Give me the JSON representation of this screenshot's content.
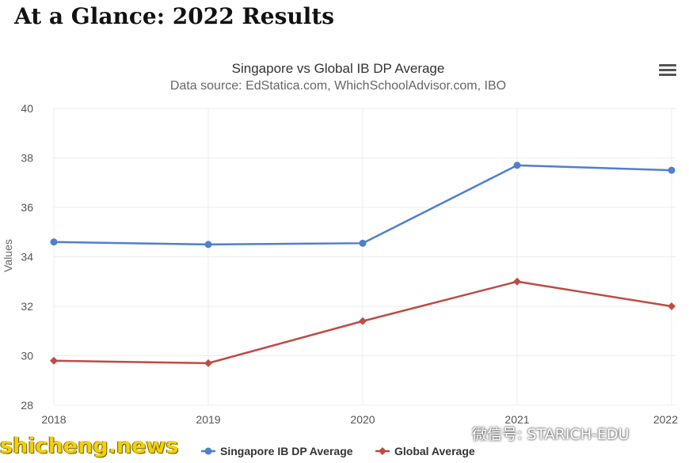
{
  "page": {
    "heading": "At a Glance: 2022 Results",
    "watermark_left": "shicheng.news",
    "watermark_right": "微信号: STARICH-EDU",
    "menu_icon": "hamburger-menu-icon"
  },
  "chart_data": {
    "type": "line",
    "title": "Singapore vs Global IB DP Average",
    "subtitle": "Data source: EdStatica.com, WhichSchoolAdvisor.com, IBO",
    "xlabel": "",
    "ylabel": "Values",
    "categories": [
      "2018",
      "2019",
      "2020",
      "2021",
      "2022"
    ],
    "ylim": [
      28,
      40
    ],
    "yticks": [
      28,
      30,
      32,
      34,
      36,
      38,
      40
    ],
    "grid": true,
    "legend_position": "bottom",
    "series": [
      {
        "name": "Singapore IB DP Average",
        "values": [
          34.6,
          34.5,
          34.55,
          37.7,
          37.5
        ],
        "color": "#4f7fcf",
        "marker": "circle"
      },
      {
        "name": "Global Average",
        "values": [
          29.8,
          29.7,
          31.4,
          33.0,
          32.0
        ],
        "color": "#bf4b43",
        "marker": "diamond"
      }
    ]
  }
}
